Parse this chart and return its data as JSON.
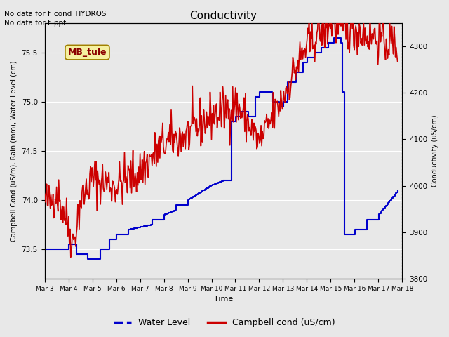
{
  "title": "Conductivity",
  "top_left_text": "No data for f_cond_HYDROS\nNo data for f_ppt",
  "box_label": "MB_tule",
  "xlabel": "Time",
  "ylabel_left": "Campbell Cond (uS/m), Rain (mm), Water Level (cm)",
  "ylabel_right": "Conductivity (uS/cm)",
  "ylim_left": [
    73.2,
    75.8
  ],
  "ylim_right": [
    3800,
    4350
  ],
  "xlim": [
    3,
    18
  ],
  "xtick_positions": [
    3,
    4,
    5,
    6,
    7,
    8,
    9,
    10,
    11,
    12,
    13,
    14,
    15,
    16,
    17,
    18
  ],
  "xtick_labels": [
    "Mar 3",
    "Mar 4",
    "Mar 5",
    "Mar 6",
    "Mar 7",
    "Mar 8",
    "Mar 9",
    "Mar 10",
    "Mar 11",
    "Mar 12",
    "Mar 13",
    "Mar 14",
    "Mar 15",
    "Mar 16",
    "Mar 17",
    "Mar 18"
  ],
  "bg_color": "#e8e8e8",
  "grid_color": "#ffffff",
  "water_level_color": "#0000cc",
  "campbell_cond_color": "#cc0000",
  "water_level_lw": 1.5,
  "campbell_cond_lw": 1.2,
  "legend_labels": [
    "Water Level",
    "Campbell cond (uS/cm)"
  ],
  "legend_colors": [
    "#0000cc",
    "#cc0000"
  ]
}
